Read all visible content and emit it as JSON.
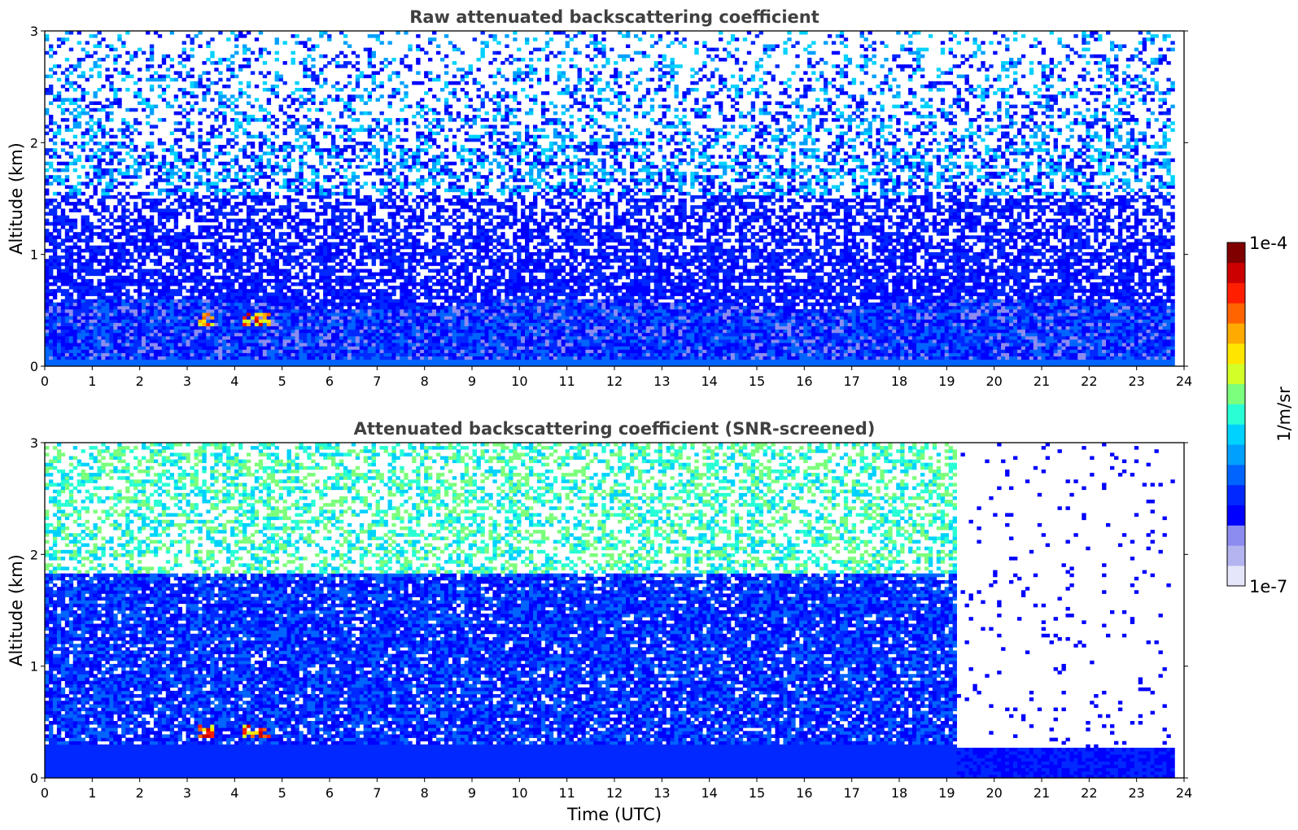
{
  "chart_data": [
    {
      "type": "heatmap",
      "title": "Raw attenuated backscattering coefficient",
      "xlabel": "",
      "ylabel": "Altitude (km)",
      "xlim": [
        0,
        24
      ],
      "ylim": [
        0,
        3
      ],
      "xticks": [
        "0",
        "1",
        "2",
        "3",
        "4",
        "5",
        "6",
        "7",
        "8",
        "9",
        "10",
        "11",
        "12",
        "13",
        "14",
        "15",
        "16",
        "17",
        "18",
        "19",
        "20",
        "21",
        "22",
        "23",
        "24"
      ],
      "yticks": [
        "0",
        "1",
        "2",
        "3"
      ],
      "data_end_time": 23.8,
      "features": {
        "boundary_layer_top_km": 0.55,
        "aerosol_layer_km": [
          0.35,
          0.45
        ],
        "aerosol_layer_time": [
          [
            3.2,
            3.5
          ],
          [
            4.1,
            4.7
          ]
        ],
        "noise_pattern": "speckled noise increasing with altitude"
      }
    },
    {
      "type": "heatmap",
      "title": "Attenuated backscattering coefficient (SNR-screened)",
      "xlabel": "Time (UTC)",
      "ylabel": "Altitude (km)",
      "xlim": [
        0,
        24
      ],
      "ylim": [
        0,
        3
      ],
      "xticks": [
        "0",
        "1",
        "2",
        "3",
        "4",
        "5",
        "6",
        "7",
        "8",
        "9",
        "10",
        "11",
        "12",
        "13",
        "14",
        "15",
        "16",
        "17",
        "18",
        "19",
        "20",
        "21",
        "22",
        "23",
        "24"
      ],
      "yticks": [
        "0",
        "1",
        "2",
        "3"
      ],
      "data_end_time": 23.8,
      "features": {
        "dense_layer_top_km": 1.8,
        "screened_surface_layer_top_km_after_19h": 0.25,
        "aerosol_layer_km": [
          0.35,
          0.45
        ],
        "aerosol_layer_time": [
          [
            3.2,
            3.5
          ],
          [
            4.1,
            4.7
          ]
        ]
      }
    }
  ],
  "colorbar": {
    "label": "1/m/sr",
    "max_label": "1e-4",
    "min_label": "1e-7",
    "scale": "log",
    "range": [
      1e-07,
      0.0001
    ],
    "colormap": [
      "#e6e6fa",
      "#b4b4f0",
      "#8c8cf0",
      "#0000ff",
      "#0028ff",
      "#0064ff",
      "#00a0ff",
      "#00d2ff",
      "#28ffd4",
      "#7cff7c",
      "#d2ff28",
      "#ffe600",
      "#ffaa00",
      "#ff6400",
      "#ff1e00",
      "#cc0000",
      "#800000"
    ]
  }
}
